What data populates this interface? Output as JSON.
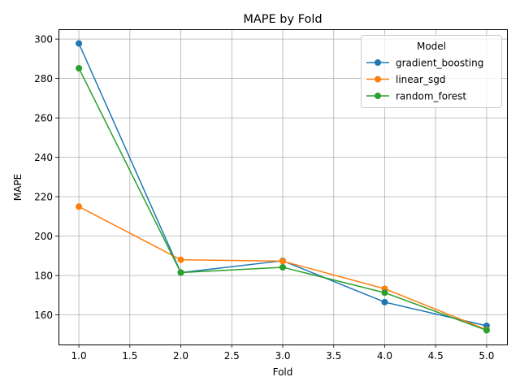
{
  "chart_data": {
    "type": "line",
    "title": "MAPE by Fold",
    "xlabel": "Fold",
    "ylabel": "MAPE",
    "x": [
      1.0,
      2.0,
      3.0,
      4.0,
      5.0
    ],
    "xlim": [
      0.8,
      5.2
    ],
    "ylim": [
      145.0,
      305.0
    ],
    "xticks": [
      1.0,
      1.5,
      2.0,
      2.5,
      3.0,
      3.5,
      4.0,
      4.5,
      5.0
    ],
    "xtick_labels": [
      "1.0",
      "1.5",
      "2.0",
      "2.5",
      "3.0",
      "3.5",
      "4.0",
      "4.5",
      "5.0"
    ],
    "yticks": [
      160,
      180,
      200,
      220,
      240,
      260,
      280,
      300
    ],
    "ytick_labels": [
      "160",
      "180",
      "200",
      "220",
      "240",
      "260",
      "280",
      "300"
    ],
    "grid": true,
    "legend": {
      "title": "Model",
      "placement": "top-right"
    },
    "series": [
      {
        "name": "gradient_boosting",
        "color": "#1f77b4",
        "values": [
          297.8,
          181.5,
          187.5,
          166.5,
          154.5
        ]
      },
      {
        "name": "linear_sgd",
        "color": "#ff7f0e",
        "values": [
          215.0,
          188.0,
          187.3,
          173.3,
          152.5
        ]
      },
      {
        "name": "random_forest",
        "color": "#2ca02c",
        "values": [
          285.2,
          181.5,
          184.2,
          171.3,
          152.2
        ]
      }
    ]
  }
}
